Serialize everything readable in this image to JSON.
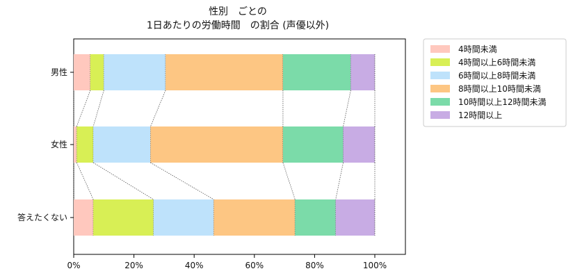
{
  "chart_data": {
    "type": "bar",
    "orientation": "horizontal",
    "stacked": true,
    "normalized": true,
    "title_lines": [
      "性別　ごとの",
      "1日あたりの労働時間　の割合 (声優以外)"
    ],
    "categories": [
      "男性",
      "女性",
      "答えたくない"
    ],
    "series": [
      {
        "name": "4時間未満",
        "values": [
          5.5,
          1.0,
          6.5
        ],
        "color": "#ffc8be"
      },
      {
        "name": "4時間以上6時間未満",
        "values": [
          4.5,
          5.5,
          20.0
        ],
        "color": "#d8ef55"
      },
      {
        "name": "6時間以上8時間未満",
        "values": [
          20.5,
          19.0,
          20.0
        ],
        "color": "#bee2fb"
      },
      {
        "name": "8時間以上10時間未満",
        "values": [
          39.0,
          44.0,
          27.0
        ],
        "color": "#fdc683"
      },
      {
        "name": "10時間以上12時間未満",
        "values": [
          22.5,
          20.0,
          13.5
        ],
        "color": "#7bdba9"
      },
      {
        "name": "12時間以上",
        "values": [
          8.0,
          10.5,
          13.0
        ],
        "color": "#c8ace4"
      }
    ],
    "x_ticks": [
      "0%",
      "20%",
      "40%",
      "60%",
      "80%",
      "100%"
    ],
    "xlim": [
      0,
      100
    ],
    "grid": false,
    "legend_position": "outside-right",
    "connector_lines": true
  }
}
